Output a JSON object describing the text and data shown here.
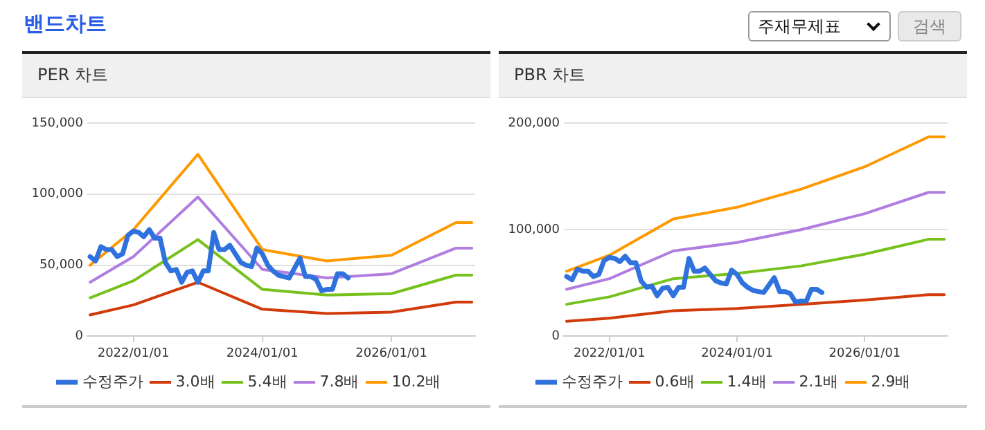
{
  "chart_data": [
    {
      "type": "other",
      "title": "밴드차트",
      "annotations": [
        "주재무제표",
        "검색"
      ]
    },
    {
      "type": "line",
      "title": "PER 차트",
      "x": [
        "2021-05",
        "2022-01",
        "2023-01",
        "2024-01",
        "2025-01",
        "2026-01",
        "2027-01",
        "2027-04"
      ],
      "series": [
        {
          "name": "수정주가",
          "color": "#2f72de",
          "x": [
            "2021-05",
            "2021-06",
            "2021-07",
            "2021-08",
            "2021-09",
            "2021-10",
            "2021-11",
            "2021-12",
            "2022-01",
            "2022-02",
            "2022-03",
            "2022-04",
            "2022-05",
            "2022-06",
            "2022-07",
            "2022-08",
            "2022-09",
            "2022-10",
            "2022-11",
            "2022-12",
            "2023-01",
            "2023-02",
            "2023-03",
            "2023-04",
            "2023-05",
            "2023-06",
            "2023-07",
            "2023-08",
            "2023-09",
            "2023-10",
            "2023-11",
            "2023-12",
            "2024-01",
            "2024-02",
            "2024-03",
            "2024-04",
            "2024-06",
            "2024-08",
            "2024-09",
            "2024-10",
            "2024-11",
            "2024-12",
            "2025-01",
            "2025-02",
            "2025-03",
            "2025-04",
            "2025-05"
          ],
          "values": [
            56000,
            53000,
            63000,
            61000,
            61000,
            56000,
            58000,
            71000,
            74000,
            73000,
            70000,
            75000,
            69000,
            69000,
            52000,
            46000,
            47000,
            38000,
            45000,
            46000,
            38000,
            46000,
            46000,
            73000,
            61000,
            61000,
            64000,
            58000,
            52000,
            50000,
            49000,
            62000,
            58000,
            50000,
            46000,
            43000,
            41000,
            55000,
            42000,
            42000,
            40000,
            32000,
            33000,
            33000,
            44000,
            44000,
            41000
          ]
        },
        {
          "name": "3.0배",
          "color": "#d13b0b",
          "values": [
            15000,
            22000,
            38000,
            19000,
            16000,
            17000,
            24000,
            24000
          ]
        },
        {
          "name": "5.4배",
          "color": "#77c11c",
          "values": [
            27000,
            39000,
            68000,
            33000,
            29000,
            30000,
            43000,
            43000
          ]
        },
        {
          "name": "7.8배",
          "color": "#b07de0",
          "values": [
            38000,
            56000,
            98000,
            47000,
            41000,
            44000,
            62000,
            62000
          ]
        },
        {
          "name": "10.2배",
          "color": "#ff9900",
          "values": [
            50000,
            75000,
            128000,
            61000,
            53000,
            57000,
            80000,
            80000
          ]
        }
      ],
      "xlim": [
        "2021-04-15",
        "2027-04-20"
      ],
      "xticks": [
        {
          "value": "2022-01-01",
          "label": "2022/01/01"
        },
        {
          "value": "2024-01-01",
          "label": "2024/01/01"
        },
        {
          "value": "2026-01-01",
          "label": "2026/01/01"
        }
      ],
      "ylim": [
        0,
        150000
      ],
      "yticks": [
        0,
        {
          "value": 50000,
          "label": "50,000"
        },
        {
          "value": 100000,
          "label": "100,000"
        },
        {
          "value": 150000,
          "label": "150,000"
        }
      ],
      "grid": "y",
      "legend": "bottom",
      "marker": "none",
      "line_style": "solid"
    },
    {
      "type": "line",
      "title": "PBR 차트",
      "x": [
        "2021-05",
        "2022-01",
        "2023-01",
        "2024-01",
        "2025-01",
        "2026-01",
        "2027-01",
        "2027-04"
      ],
      "series": [
        {
          "name": "수정주가",
          "color": "#2f72de",
          "x": [
            "2021-05",
            "2021-06",
            "2021-07",
            "2021-08",
            "2021-09",
            "2021-10",
            "2021-11",
            "2021-12",
            "2022-01",
            "2022-02",
            "2022-03",
            "2022-04",
            "2022-05",
            "2022-06",
            "2022-07",
            "2022-08",
            "2022-09",
            "2022-10",
            "2022-11",
            "2022-12",
            "2023-01",
            "2023-02",
            "2023-03",
            "2023-04",
            "2023-05",
            "2023-06",
            "2023-07",
            "2023-08",
            "2023-09",
            "2023-10",
            "2023-11",
            "2023-12",
            "2024-01",
            "2024-02",
            "2024-03",
            "2024-04",
            "2024-06",
            "2024-08",
            "2024-09",
            "2024-10",
            "2024-11",
            "2024-12",
            "2025-01",
            "2025-02",
            "2025-03",
            "2025-04",
            "2025-05"
          ],
          "values": [
            56000,
            53000,
            63000,
            61000,
            61000,
            56000,
            58000,
            71000,
            74000,
            73000,
            70000,
            75000,
            69000,
            69000,
            52000,
            46000,
            47000,
            38000,
            45000,
            46000,
            38000,
            46000,
            46000,
            73000,
            61000,
            61000,
            64000,
            58000,
            52000,
            50000,
            49000,
            62000,
            58000,
            50000,
            46000,
            43000,
            41000,
            55000,
            42000,
            42000,
            40000,
            32000,
            33000,
            33000,
            44000,
            44000,
            41000
          ]
        },
        {
          "name": "0.6배",
          "color": "#d13b0b",
          "values": [
            14000,
            17000,
            24000,
            26000,
            30000,
            34000,
            39000,
            39000
          ]
        },
        {
          "name": "1.4배",
          "color": "#77c11c",
          "values": [
            30000,
            37000,
            54000,
            59000,
            66000,
            77000,
            91000,
            91000
          ]
        },
        {
          "name": "2.1배",
          "color": "#b07de0",
          "values": [
            44000,
            54000,
            80000,
            88000,
            100000,
            115000,
            135000,
            135000
          ]
        },
        {
          "name": "2.9배",
          "color": "#ff9900",
          "values": [
            61000,
            76000,
            110000,
            121000,
            138000,
            159000,
            187000,
            187000
          ]
        }
      ],
      "xlim": [
        "2021-04-15",
        "2027-04-20"
      ],
      "xticks": [
        {
          "value": "2022-01-01",
          "label": "2022/01/01"
        },
        {
          "value": "2024-01-01",
          "label": "2024/01/01"
        },
        {
          "value": "2026-01-01",
          "label": "2026/01/01"
        }
      ],
      "ylim": [
        0,
        200000
      ],
      "yticks": [
        0,
        {
          "value": 100000,
          "label": "100,000"
        },
        {
          "value": 200000,
          "label": "200,000"
        }
      ],
      "grid": "y",
      "legend": "bottom",
      "marker": "none",
      "line_style": "solid"
    }
  ]
}
